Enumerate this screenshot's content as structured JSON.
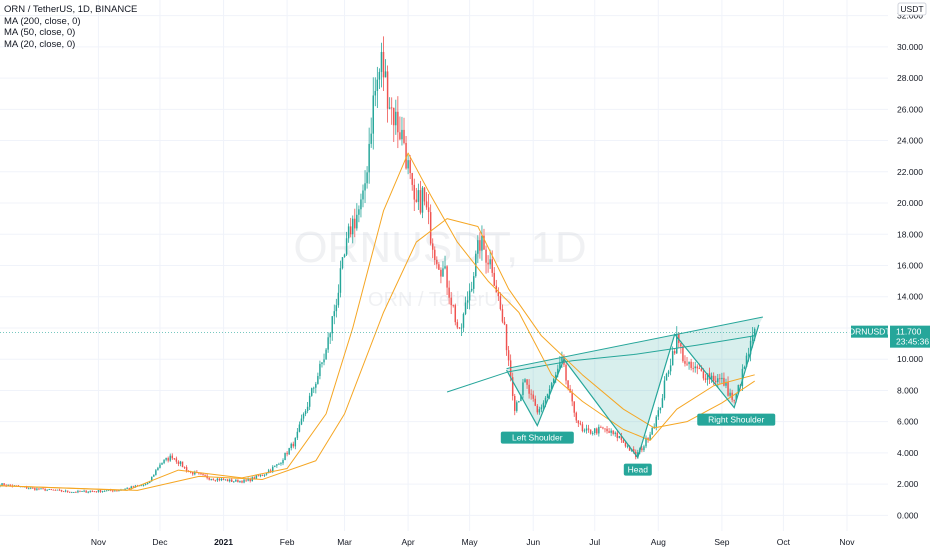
{
  "header": {
    "symbol_line": "ORN / TetherUS, 1D, BINANCE",
    "indicators": [
      "MA (200, close, 0)",
      "MA (50, close, 0)",
      "MA (20, close, 0)"
    ]
  },
  "watermark": {
    "symbol": "ORNUSDT, 1D",
    "name": "ORN / TetherUS"
  },
  "currency_badge": "USDT",
  "price_badge": {
    "symbol": "ORNUSDT",
    "price": "11.700",
    "countdown": "23:45:36"
  },
  "annotations": [
    {
      "label": "Left Shoulder",
      "date": "2021-06-03",
      "price": 5.75
    },
    {
      "label": "Head",
      "date": "2021-07-22",
      "price": 3.7
    },
    {
      "label": "Right Shoulder",
      "date": "2021-09-08",
      "price": 6.9
    }
  ],
  "colors": {
    "up": "#26a69a",
    "down": "#ef5350",
    "ma": "#f5a623",
    "ma200": "#26a69a",
    "pattern": "#26a69a",
    "grid": "#f0f3fa"
  },
  "chart_data": {
    "type": "candlestick",
    "title": "ORN / TetherUS, 1D, BINANCE",
    "xlabel": "",
    "ylabel": "",
    "ylim": [
      -1,
      33
    ],
    "yticks": [
      0,
      2,
      4,
      6,
      8,
      10,
      12,
      14,
      16,
      18,
      20,
      22,
      24,
      26,
      28,
      30,
      32
    ],
    "ytick_labels": [
      "0.000",
      "2.000",
      "4.000",
      "6.000",
      "8.000",
      "10.000",
      "12.000",
      "14.000",
      "16.000",
      "18.000",
      "20.000",
      "22.000",
      "24.000",
      "26.000",
      "28.000",
      "30.000",
      "32.000"
    ],
    "xlim": [
      "2020-09-14",
      "2021-11-21"
    ],
    "xticks": [
      {
        "date": "2020-11-01",
        "label": "Nov"
      },
      {
        "date": "2020-12-01",
        "label": "Dec"
      },
      {
        "date": "2021-01-01",
        "label": "2021"
      },
      {
        "date": "2021-02-01",
        "label": "Feb"
      },
      {
        "date": "2021-03-01",
        "label": "Mar"
      },
      {
        "date": "2021-04-01",
        "label": "Apr"
      },
      {
        "date": "2021-05-01",
        "label": "May"
      },
      {
        "date": "2021-06-01",
        "label": "Jun"
      },
      {
        "date": "2021-07-01",
        "label": "Jul"
      },
      {
        "date": "2021-08-01",
        "label": "Aug"
      },
      {
        "date": "2021-09-01",
        "label": "Sep"
      },
      {
        "date": "2021-10-01",
        "label": "Oct"
      },
      {
        "date": "2021-11-01",
        "label": "Nov"
      }
    ],
    "price_anchors": [
      {
        "date": "2020-09-14",
        "price": 2.0
      },
      {
        "date": "2020-10-01",
        "price": 1.7
      },
      {
        "date": "2020-10-20",
        "price": 1.5
      },
      {
        "date": "2020-11-10",
        "price": 1.6
      },
      {
        "date": "2020-11-25",
        "price": 2.0
      },
      {
        "date": "2020-12-01",
        "price": 3.3
      },
      {
        "date": "2020-12-07",
        "price": 3.8
      },
      {
        "date": "2020-12-15",
        "price": 2.8
      },
      {
        "date": "2020-12-25",
        "price": 2.4
      },
      {
        "date": "2021-01-05",
        "price": 2.2
      },
      {
        "date": "2021-01-12",
        "price": 2.2
      },
      {
        "date": "2021-01-20",
        "price": 2.6
      },
      {
        "date": "2021-01-28",
        "price": 3.3
      },
      {
        "date": "2021-02-05",
        "price": 4.8
      },
      {
        "date": "2021-02-12",
        "price": 7.5
      },
      {
        "date": "2021-02-20",
        "price": 10.5
      },
      {
        "date": "2021-02-26",
        "price": 14.5
      },
      {
        "date": "2021-03-04",
        "price": 18.5
      },
      {
        "date": "2021-03-10",
        "price": 20.0
      },
      {
        "date": "2021-03-15",
        "price": 26.5
      },
      {
        "date": "2021-03-19",
        "price": 29.0
      },
      {
        "date": "2021-03-24",
        "price": 26.0
      },
      {
        "date": "2021-03-30",
        "price": 24.0
      },
      {
        "date": "2021-04-04",
        "price": 19.5
      },
      {
        "date": "2021-04-08",
        "price": 20.5
      },
      {
        "date": "2021-04-14",
        "price": 17.0
      },
      {
        "date": "2021-04-20",
        "price": 15.0
      },
      {
        "date": "2021-04-26",
        "price": 11.5
      },
      {
        "date": "2021-05-01",
        "price": 14.5
      },
      {
        "date": "2021-05-06",
        "price": 17.5
      },
      {
        "date": "2021-05-12",
        "price": 16.0
      },
      {
        "date": "2021-05-19",
        "price": 11.0
      },
      {
        "date": "2021-05-23",
        "price": 7.0
      },
      {
        "date": "2021-05-28",
        "price": 8.5
      },
      {
        "date": "2021-06-03",
        "price": 6.5
      },
      {
        "date": "2021-06-10",
        "price": 8.3
      },
      {
        "date": "2021-06-15",
        "price": 9.8
      },
      {
        "date": "2021-06-20",
        "price": 7.0
      },
      {
        "date": "2021-06-25",
        "price": 5.3
      },
      {
        "date": "2021-07-05",
        "price": 5.5
      },
      {
        "date": "2021-07-13",
        "price": 5.0
      },
      {
        "date": "2021-07-21",
        "price": 3.8
      },
      {
        "date": "2021-07-25",
        "price": 4.5
      },
      {
        "date": "2021-08-01",
        "price": 6.5
      },
      {
        "date": "2021-08-06",
        "price": 9.5
      },
      {
        "date": "2021-08-10",
        "price": 11.3
      },
      {
        "date": "2021-08-15",
        "price": 9.5
      },
      {
        "date": "2021-08-25",
        "price": 9.0
      },
      {
        "date": "2021-09-02",
        "price": 8.5
      },
      {
        "date": "2021-09-07",
        "price": 7.2
      },
      {
        "date": "2021-09-12",
        "price": 9.5
      },
      {
        "date": "2021-09-17",
        "price": 11.7
      }
    ],
    "ma20": [
      {
        "date": "2020-09-14",
        "price": 1.9
      },
      {
        "date": "2020-11-15",
        "price": 1.6
      },
      {
        "date": "2020-12-10",
        "price": 2.9
      },
      {
        "date": "2021-01-10",
        "price": 2.4
      },
      {
        "date": "2021-02-01",
        "price": 3.0
      },
      {
        "date": "2021-02-20",
        "price": 6.5
      },
      {
        "date": "2021-03-05",
        "price": 12.0
      },
      {
        "date": "2021-03-20",
        "price": 19.5
      },
      {
        "date": "2021-04-01",
        "price": 23.2
      },
      {
        "date": "2021-04-12",
        "price": 20.5
      },
      {
        "date": "2021-04-25",
        "price": 17.5
      },
      {
        "date": "2021-05-10",
        "price": 15.0
      },
      {
        "date": "2021-05-25",
        "price": 13.0
      },
      {
        "date": "2021-06-10",
        "price": 9.0
      },
      {
        "date": "2021-06-25",
        "price": 7.3
      },
      {
        "date": "2021-07-15",
        "price": 5.5
      },
      {
        "date": "2021-07-28",
        "price": 4.8
      },
      {
        "date": "2021-08-10",
        "price": 6.8
      },
      {
        "date": "2021-08-28",
        "price": 8.3
      },
      {
        "date": "2021-09-17",
        "price": 9.0
      }
    ],
    "ma50": [
      {
        "date": "2020-09-14",
        "price": 1.9
      },
      {
        "date": "2020-11-20",
        "price": 1.6
      },
      {
        "date": "2020-12-20",
        "price": 2.5
      },
      {
        "date": "2021-01-20",
        "price": 2.3
      },
      {
        "date": "2021-02-15",
        "price": 3.5
      },
      {
        "date": "2021-03-01",
        "price": 6.5
      },
      {
        "date": "2021-03-20",
        "price": 13.0
      },
      {
        "date": "2021-04-05",
        "price": 17.5
      },
      {
        "date": "2021-04-20",
        "price": 19.0
      },
      {
        "date": "2021-05-05",
        "price": 18.5
      },
      {
        "date": "2021-05-20",
        "price": 14.5
      },
      {
        "date": "2021-06-05",
        "price": 11.5
      },
      {
        "date": "2021-06-25",
        "price": 9.0
      },
      {
        "date": "2021-07-15",
        "price": 6.8
      },
      {
        "date": "2021-07-30",
        "price": 5.6
      },
      {
        "date": "2021-08-15",
        "price": 6.0
      },
      {
        "date": "2021-09-01",
        "price": 7.2
      },
      {
        "date": "2021-09-17",
        "price": 8.6
      }
    ],
    "ma200": [
      {
        "date": "2021-04-20",
        "price": 7.9
      },
      {
        "date": "2021-05-20",
        "price": 9.2
      },
      {
        "date": "2021-06-20",
        "price": 9.9
      },
      {
        "date": "2021-07-20",
        "price": 10.3
      },
      {
        "date": "2021-08-20",
        "price": 10.9
      },
      {
        "date": "2021-09-17",
        "price": 11.5
      }
    ],
    "pattern_trendline": [
      {
        "date": "2021-05-19",
        "price": 9.4
      },
      {
        "date": "2021-09-21",
        "price": 12.7
      }
    ],
    "pattern_zigzag": [
      {
        "date": "2021-05-19",
        "price": 9.3
      },
      {
        "date": "2021-06-03",
        "price": 5.75
      },
      {
        "date": "2021-06-16",
        "price": 10.0
      },
      {
        "date": "2021-07-22",
        "price": 3.7
      },
      {
        "date": "2021-08-09",
        "price": 11.6
      },
      {
        "date": "2021-09-07",
        "price": 6.9
      },
      {
        "date": "2021-09-19",
        "price": 12.2
      }
    ]
  }
}
